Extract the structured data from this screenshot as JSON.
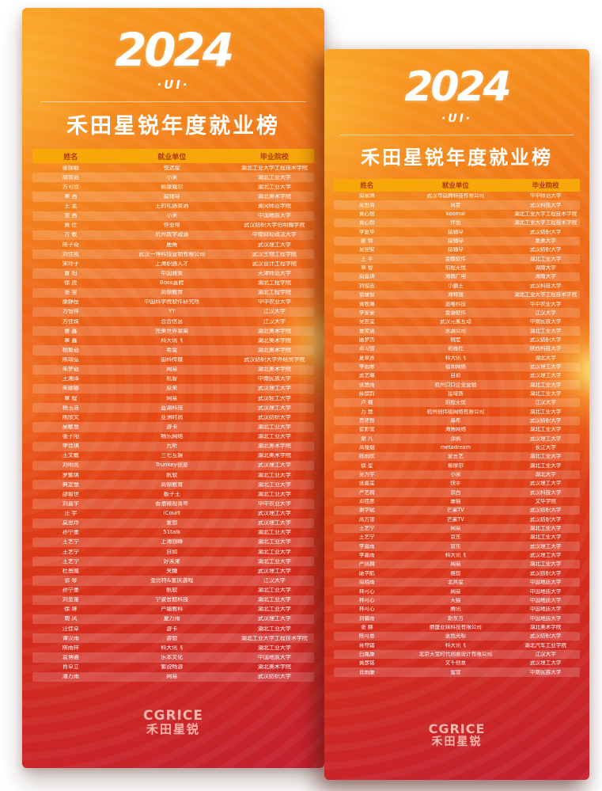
{
  "colors": {
    "poster_top": "#f79a1e",
    "poster_bottom": "#c32030",
    "header_band": "#f7a70a",
    "header_text": "#b03a12",
    "row_text": "#ffffff",
    "glow_yellow": "#ffee78"
  },
  "posters": [
    {
      "year_logo": "2024",
      "ui_tag": "·UI·",
      "title": "禾田星锐年度就业榜",
      "table_headers": [
        "姓名",
        "就业单位",
        "毕业院校"
      ],
      "footer_logo_en": "CGRICE",
      "footer_logo_cn": "禾田星锐",
      "rows": [
        [
          "张锦毅",
          "悦选星",
          "湖北工业大学工程技术学院"
        ],
        [
          "胡雪茹",
          "小米",
          "湖北工业大学"
        ],
        [
          "方可欣",
          "熙康威尔",
          "湖北工业大学"
        ],
        [
          "覃  茜",
          "猿辅导",
          "湖北美术学院"
        ],
        [
          "王  孟",
          "王的礼遇茶酒",
          "黄冈师范学院"
        ],
        [
          "宣  茜",
          "小米",
          "中国地质大学"
        ],
        [
          "黄  仕",
          "作业帮",
          "武汉纺织大学伯明翰学院"
        ],
        [
          "方  敏",
          "杭州数字政通",
          "中南财经政法大学"
        ],
        [
          "陈子奇",
          "鹿角",
          "武汉理工大学"
        ],
        [
          "刘佳凯",
          "武汉一博科技营销有限公司",
          "武汉生物工程学院"
        ],
        [
          "宋玲子",
          "上海职遇人才",
          "武汉设计工程学院"
        ],
        [
          "曹  阳",
          "中国雅集",
          "天津师范大学"
        ],
        [
          "徐  虎",
          "Boss直聘",
          "湖北工程学院"
        ],
        [
          "张  雯",
          "高顿教育",
          "湖北工程学院"
        ],
        [
          "康静岳",
          "中国科学院软件研究所",
          "华中农业大学"
        ],
        [
          "方恒祥",
          "YY",
          "江汉大学"
        ],
        [
          "方佳珠",
          "合合信息",
          "江汉大学"
        ],
        [
          "曹  鑫",
          "完美世界棠果",
          "湖北美术学院"
        ],
        [
          "覃  鑫",
          "科大讯飞",
          "湖北美术学院"
        ],
        [
          "杨繁茹",
          "希壹",
          "湖北美术学院"
        ],
        [
          "陈靖弘",
          "国科传媒",
          "武汉纺织大学外经贸学院"
        ],
        [
          "朱梦茹",
          "网易",
          "湖北美术学院"
        ],
        [
          "王湘泽",
          "机智",
          "中南民族大学"
        ],
        [
          "朱娜娜",
          "原来",
          "武汉理工大学"
        ],
        [
          "覃  程",
          "网易",
          "武汉轻工大学"
        ],
        [
          "杨玉洁",
          "蓝湖科技",
          "武汉理工大学"
        ],
        [
          "陈欣文",
          "亚洲时尚",
          "武汉纺织大学"
        ],
        [
          "吴敏慧",
          "游卡",
          "湖北工业大学"
        ],
        [
          "张子阳",
          "畅乐网络",
          "湖北工业大学"
        ],
        [
          "李佳琪",
          "九听",
          "湖北美术学院"
        ],
        [
          "王文敏",
          "三七互娱",
          "湖北美术学院"
        ],
        [
          "刘明亮",
          "Trunkey创意",
          "武汉理工大学"
        ],
        [
          "罗紫琪",
          "帆软",
          "湖北工业大学"
        ],
        [
          "典定慧",
          "高顿教育",
          "湖北工业大学"
        ],
        [
          "邵智世",
          "板子王",
          "湖北工业大学"
        ],
        [
          "刘嘉宇",
          "香港微视青年",
          "华中农业大学"
        ],
        [
          "汪  宇",
          "iCourt",
          "武汉理工大学"
        ],
        [
          "莫思玲",
          "爱想",
          "武汉理工大学"
        ],
        [
          "孙宁墨",
          "51talk",
          "湖北工业大学"
        ],
        [
          "王艺宁",
          "上海领峰",
          "湖北工业大学"
        ],
        [
          "王艺宁",
          "自如",
          "湖北工业大学"
        ],
        [
          "王艺宁",
          "好未来",
          "湖北工业大学"
        ],
        [
          "杜景威",
          "夹糖",
          "武汉理工大学"
        ],
        [
          "余  琴",
          "金比特&重庆游戏",
          "江汉大学"
        ],
        [
          "孙宁墨",
          "帆软",
          "湖北工业大学"
        ],
        [
          "刘金童",
          "宁波音蛙科技",
          "湖北工业大学"
        ],
        [
          "徐  琳",
          "产编教科",
          "湖北工业大学"
        ],
        [
          "南  风",
          "夏万雨",
          "武汉理工大学"
        ],
        [
          "汪佳卓",
          "游卡",
          "湖北工业大学"
        ],
        [
          "谭汉雨",
          "游想",
          "湖北工业大学工程技术学院"
        ],
        [
          "陈雨祥",
          "科大讯飞",
          "湖北工业大学"
        ],
        [
          "袁博雅",
          "乐本文化",
          "中国地质大学"
        ],
        [
          "肖卓立",
          "繁锐畅游",
          "湖北美术学院"
        ],
        [
          "潘万雨",
          "网易",
          "武汉纺织大学"
        ]
      ]
    },
    {
      "year_logo": "2024",
      "ui_tag": "·UI·",
      "title": "禾田星锐年度就业榜",
      "table_headers": [
        "姓名",
        "就业单位",
        "毕业院校"
      ],
      "footer_logo_en": "CGRICE",
      "footer_logo_cn": "禾田星锐",
      "rows": [
        [
          "周家洲",
          "武汉市益腾科技有限公司",
          "华中师范大学"
        ],
        [
          "吴世周",
          "风变",
          "武汉科技大学"
        ],
        [
          "黄心怡",
          "koomal",
          "湖北工业大学工程技术学院"
        ],
        [
          "黄心怡",
          "伴鱼",
          "湖北工业大学工程技术学院"
        ],
        [
          "李复华",
          "猿辅导",
          "武汉纺织大学"
        ],
        [
          "廖  情",
          "猿辅导",
          "集美大学"
        ],
        [
          "吴迎安",
          "猿辅导",
          "武汉纺织大学"
        ],
        [
          "王  平",
          "金蝶软件",
          "湖北工业大学"
        ],
        [
          "覃  智",
          "前程无忧",
          "湖南大学"
        ],
        [
          "周嘉琪",
          "海南广电",
          "海南大学"
        ],
        [
          "刘俊志",
          "小霸王",
          "武汉科技大学"
        ],
        [
          "徐康智",
          "海特搜",
          "湖北工业大学工程技术学院"
        ],
        [
          "黄牧琳",
          "途唯科技",
          "华中农业大学"
        ],
        [
          "李安豪",
          "金源软件",
          "江汉大学"
        ],
        [
          "吴笠玺",
          "武汉元素互动",
          "中南民族大学"
        ],
        [
          "童笑语",
          "水滴公司",
          "湖北工业大学"
        ],
        [
          "唐梦杰",
          "桃宏",
          "武汉纺织大学"
        ],
        [
          "邓习雪",
          "彩薇社",
          "陕西科技大学"
        ],
        [
          "夏翠莲",
          "科大讯飞",
          "湖北大学"
        ],
        [
          "李雨寒",
          "福师网络",
          "武汉理工大学"
        ],
        [
          "武艺琳",
          "自彩",
          "武汉理工大学"
        ],
        [
          "张慧雨",
          "杭州口口企业营销",
          "湖北工业大学"
        ],
        [
          "薛歆韵",
          "接域铁",
          "湖北工业大学"
        ],
        [
          "卢  楠",
          "前程无忧",
          "江汉大学"
        ],
        [
          "万  慧",
          "杭州创伟德网络有限公司",
          "湖北工业大学"
        ],
        [
          "贾述怡",
          "慕希",
          "武汉纺织大学"
        ],
        [
          "崔影雪",
          "海角网络",
          "湖北工业大学"
        ],
        [
          "谢  凡",
          "涂鸦",
          "武汉理工大学"
        ],
        [
          "高槿烟",
          "metadream",
          "长江大学"
        ],
        [
          "陈雨欣",
          "爱豆艺",
          "湖北工业大学"
        ],
        [
          "徐  星",
          "柳摩尔",
          "湖北工业大学"
        ],
        [
          "吴为宇",
          "小米",
          "湖北大学"
        ],
        [
          "张嘉玺",
          "快手",
          "武汉理工大学"
        ],
        [
          "严艺楠",
          "京西",
          "武汉科技大学"
        ],
        [
          "邓桂彦",
          "康猫",
          "文华学院"
        ],
        [
          "谢学斌",
          "芒果TV",
          "武汉纺织大学"
        ],
        [
          "高方雪",
          "芒果TV",
          "武汉纺织大学"
        ],
        [
          "王艺宁",
          "网易",
          "湖北工业大学"
        ],
        [
          "王艺宁",
          "京东",
          "湖北工业大学"
        ],
        [
          "李嘉雨",
          "京东",
          "武汉理工大学"
        ],
        [
          "李嘉雨",
          "科大讯飞",
          "武汉理工大学"
        ],
        [
          "严凤楠",
          "网易",
          "湖北工业大学"
        ],
        [
          "唐学航",
          "维想",
          "武汉纺织大学"
        ],
        [
          "周晓雨",
          "北冥星",
          "中国地质大学"
        ],
        [
          "林可心",
          "网易",
          "中国地质大学"
        ],
        [
          "林可心",
          "天猫",
          "中国地质大学"
        ],
        [
          "林可心",
          "腾讯",
          "中国地质大学"
        ],
        [
          "刘馨雨",
          "新东方",
          "中国地质大学"
        ],
        [
          "张  赫",
          "鼎盛亚妹科技有限公司",
          "湖北美术学院"
        ],
        [
          "陈可意",
          "蓝色光标",
          "武汉纺织大学"
        ],
        [
          "蒋夺霜",
          "科大讯飞",
          "湖北汽车工业学院"
        ],
        [
          "白胤康",
          "北京天宝时代创意设计有限公司",
          "江汉大学"
        ],
        [
          "黄彦铭",
          "文千创意",
          "武汉理工大学"
        ],
        [
          "肖雨康",
          "蜜雪",
          "中南民族大学"
        ]
      ]
    }
  ]
}
